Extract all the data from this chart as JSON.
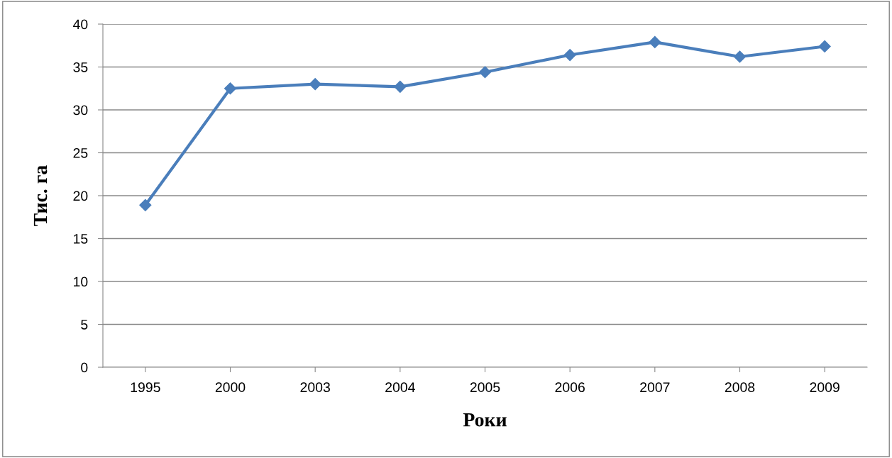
{
  "chart_data": {
    "type": "line",
    "xlabel": "Роки",
    "ylabel": "Тис. га",
    "categories": [
      "1995",
      "2000",
      "2003",
      "2004",
      "2005",
      "2006",
      "2007",
      "2008",
      "2009"
    ],
    "series": [
      {
        "color": "#4a7ebb",
        "values": [
          18.9,
          32.5,
          33.0,
          32.7,
          34.4,
          36.4,
          37.9,
          36.2,
          37.4
        ]
      }
    ],
    "ylim": [
      0,
      40
    ],
    "yticks": [
      0,
      5,
      10,
      15,
      20,
      25,
      30,
      35,
      40
    ],
    "grid": "y",
    "marker": "diamond",
    "line_style": "solid",
    "legend": false
  }
}
